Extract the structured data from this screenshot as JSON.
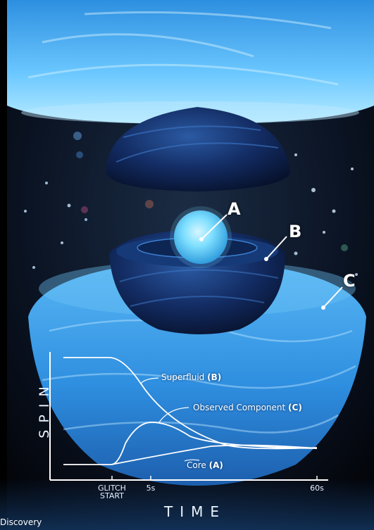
{
  "labels": {
    "a": "A",
    "b": "B",
    "c": "C"
  },
  "chart": {
    "ylabel": "SPIN",
    "xlabel": "TIME",
    "ticks": {
      "glitch": "GLITCH\nSTART",
      "t5": "5s",
      "t60": "60s"
    },
    "curves": {
      "superfluid_prefix": "Superfluid ",
      "superfluid_tag": "(B)",
      "observed_prefix": "Observed Component ",
      "observed_tag": "(C)",
      "core_prefix": "Core ",
      "core_tag": "(A)"
    }
  },
  "credit": "Discovery",
  "colors": {
    "background": "#05070d",
    "ice": "#3fa8ef",
    "dark_shell": "#0d1f47",
    "core_glow": "#7fe0ff",
    "curve_line": "#ffffff"
  }
}
